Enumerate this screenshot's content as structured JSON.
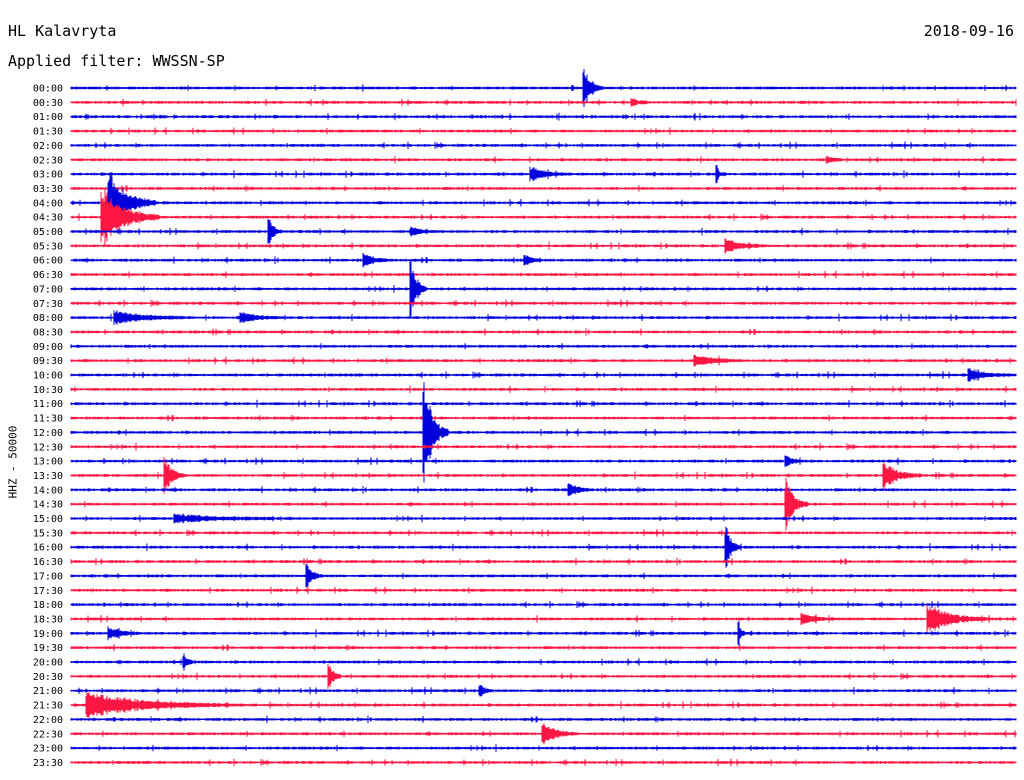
{
  "header": {
    "station": "HL Kalavryta",
    "date": "2018-09-16",
    "filter_label": "Applied filter: WWSSN-SP"
  },
  "chart_data": {
    "type": "line",
    "title": "HL Kalavryta",
    "subtitle": "Applied filter: WWSSN-SP",
    "ylabel": "HHZ - 50000",
    "date": "2018-09-16",
    "x_range_minutes": [
      0,
      30
    ],
    "grid": false,
    "colors": [
      "#0000dd",
      "#ff1744"
    ],
    "row_labels": [
      "00:00",
      "00:30",
      "01:00",
      "01:30",
      "02:00",
      "02:30",
      "03:00",
      "03:30",
      "04:00",
      "04:30",
      "05:00",
      "05:30",
      "06:00",
      "06:30",
      "07:00",
      "07:30",
      "08:00",
      "08:30",
      "09:00",
      "09:30",
      "10:00",
      "10:30",
      "11:00",
      "11:30",
      "12:00",
      "12:30",
      "13:00",
      "13:30",
      "14:00",
      "14:30",
      "15:00",
      "15:30",
      "16:00",
      "16:30",
      "17:00",
      "17:30",
      "18:00",
      "18:30",
      "19:00",
      "19:30",
      "20:00",
      "20:30",
      "21:00",
      "21:30",
      "22:00",
      "22:30",
      "23:00",
      "23:30"
    ],
    "events": [
      {
        "row": 0,
        "minute": 16.3,
        "amplitude": 1.55,
        "duration_min": 0.6
      },
      {
        "row": 1,
        "minute": 17.8,
        "amplitude": 0.3,
        "duration_min": 0.6
      },
      {
        "row": 5,
        "minute": 24.0,
        "amplitude": 0.3,
        "duration_min": 0.5
      },
      {
        "row": 6,
        "minute": 14.6,
        "amplitude": 0.5,
        "duration_min": 1.2
      },
      {
        "row": 6,
        "minute": 20.5,
        "amplitude": 0.6,
        "duration_min": 0.2
      },
      {
        "row": 8,
        "minute": 1.2,
        "amplitude": 2.5,
        "duration_min": 1.5
      },
      {
        "row": 9,
        "minute": 1.0,
        "amplitude": 2.3,
        "duration_min": 1.8
      },
      {
        "row": 10,
        "minute": 6.3,
        "amplitude": 1.0,
        "duration_min": 0.4
      },
      {
        "row": 10,
        "minute": 10.8,
        "amplitude": 0.3,
        "duration_min": 0.8
      },
      {
        "row": 11,
        "minute": 20.8,
        "amplitude": 0.5,
        "duration_min": 1.3
      },
      {
        "row": 12,
        "minute": 9.3,
        "amplitude": 0.45,
        "duration_min": 1.0
      },
      {
        "row": 12,
        "minute": 14.4,
        "amplitude": 0.45,
        "duration_min": 0.5
      },
      {
        "row": 14,
        "minute": 10.8,
        "amplitude": 2.4,
        "duration_min": 0.5
      },
      {
        "row": 16,
        "minute": 1.4,
        "amplitude": 0.45,
        "duration_min": 2.5
      },
      {
        "row": 16,
        "minute": 5.4,
        "amplitude": 0.35,
        "duration_min": 1.5
      },
      {
        "row": 19,
        "minute": 19.8,
        "amplitude": 0.5,
        "duration_min": 1.5
      },
      {
        "row": 20,
        "minute": 28.5,
        "amplitude": 0.45,
        "duration_min": 1.4
      },
      {
        "row": 24,
        "minute": 11.2,
        "amplitude": 4.0,
        "duration_min": 0.8
      },
      {
        "row": 26,
        "minute": 22.7,
        "amplitude": 0.5,
        "duration_min": 0.5
      },
      {
        "row": 27,
        "minute": 3.0,
        "amplitude": 1.3,
        "duration_min": 0.6
      },
      {
        "row": 27,
        "minute": 25.8,
        "amplitude": 1.0,
        "duration_min": 1.2
      },
      {
        "row": 28,
        "minute": 15.8,
        "amplitude": 0.5,
        "duration_min": 0.8
      },
      {
        "row": 29,
        "minute": 22.7,
        "amplitude": 2.0,
        "duration_min": 0.7
      },
      {
        "row": 30,
        "minute": 3.3,
        "amplitude": 0.3,
        "duration_min": 4.0
      },
      {
        "row": 32,
        "minute": 20.8,
        "amplitude": 1.5,
        "duration_min": 0.5
      },
      {
        "row": 34,
        "minute": 7.5,
        "amplitude": 0.9,
        "duration_min": 0.5
      },
      {
        "row": 37,
        "minute": 23.2,
        "amplitude": 0.4,
        "duration_min": 1.2
      },
      {
        "row": 37,
        "minute": 27.2,
        "amplitude": 1.1,
        "duration_min": 2.0
      },
      {
        "row": 38,
        "minute": 1.2,
        "amplitude": 0.5,
        "duration_min": 1.0
      },
      {
        "row": 38,
        "minute": 21.2,
        "amplitude": 1.2,
        "duration_min": 0.2
      },
      {
        "row": 40,
        "minute": 3.6,
        "amplitude": 0.6,
        "duration_min": 0.3
      },
      {
        "row": 41,
        "minute": 8.2,
        "amplitude": 1.0,
        "duration_min": 0.4
      },
      {
        "row": 42,
        "minute": 13.0,
        "amplitude": 0.5,
        "duration_min": 0.4
      },
      {
        "row": 43,
        "minute": 0.5,
        "amplitude": 0.9,
        "duration_min": 5.0
      },
      {
        "row": 45,
        "minute": 15.0,
        "amplitude": 0.9,
        "duration_min": 1.0
      }
    ]
  }
}
